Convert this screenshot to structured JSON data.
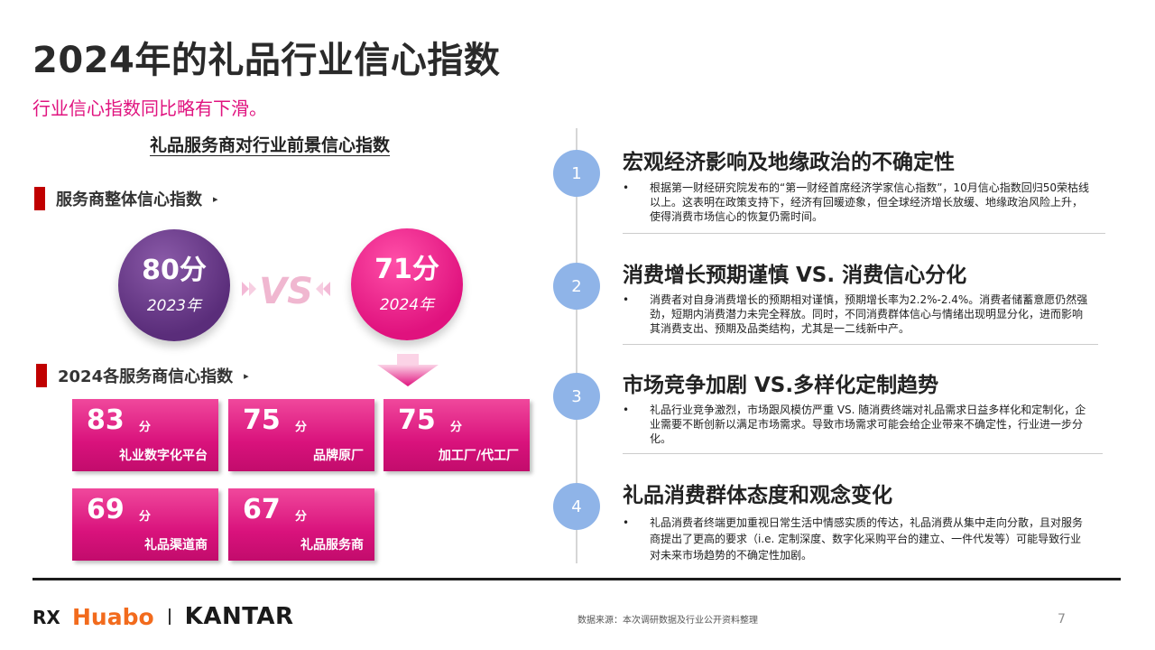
{
  "title": "2024年的礼品行业信心指数",
  "subtitle": "行业信心指数同比略有下滑。",
  "left": {
    "heading": "礼品服务商对行业前景信心指数",
    "overall_label": "服务商整体信心指数",
    "overall_arrow": "▸",
    "scores": [
      {
        "score": "80分",
        "year": "2023年",
        "color": "#6b3a8f"
      },
      {
        "score": "71分",
        "year": "2024年",
        "color": "#e0127e"
      }
    ],
    "vs_text": "VS",
    "by_type_label": "2024各服务商信心指数",
    "by_type_arrow": "▸",
    "tiles": [
      {
        "value": "83",
        "unit": "分",
        "name": "礼业数字化平台"
      },
      {
        "value": "75",
        "unit": "分",
        "name": "品牌原厂"
      },
      {
        "value": "75",
        "unit": "分",
        "name": "加工厂/代工厂"
      },
      {
        "value": "69",
        "unit": "分",
        "name": "礼品渠道商"
      },
      {
        "value": "67",
        "unit": "分",
        "name": "礼品服务商"
      }
    ]
  },
  "right": {
    "items": [
      {
        "num": "1",
        "title": "宏观经济影响及地缘政治的不确定性",
        "bullet": "•",
        "body": "根据第一财经研究院发布的“第一财经首席经济学家信心指数”，10月信心指数回归50荣枯线以上。这表明在政策支持下，经济有回暖迹象，但全球经济增长放缓、地缘政治风险上升，使得消费市场信心的恢复仍需时间。"
      },
      {
        "num": "2",
        "title": "消费增长预期谨慎 VS. 消费信心分化",
        "bullet": "•",
        "body": "消费者对自身消费增长的预期相对谨慎，预期增长率为2.2%-2.4%。消费者储蓄意愿仍然强劲，短期内消费潜力未完全释放。同时，不同消费群体信心与情绪出现明显分化，进而影响其消费支出、预期及品类结构，尤其是一二线新中产。"
      },
      {
        "num": "3",
        "title": "市场竞争加剧 VS.多样化定制趋势",
        "bullet": "•",
        "body": "礼品行业竞争激烈，市场跟风模仿严重 VS. 随消费终端对礼品需求日益多样化和定制化，企业需要不断创新以满足市场需求。导致市场需求可能会给企业带来不确定性，行业进一步分化。"
      },
      {
        "num": "4",
        "title": "礼品消费群体态度和观念变化",
        "bullet": "•",
        "body": "礼品消费者终端更加重视日常生活中情感实质的传达，礼品消费从集中走向分散，且对服务商提出了更高的要求（i.e. 定制深度、数字化采购平台的建立、一件代发等）可能导致行业对未来市场趋势的不确定性加剧。"
      }
    ]
  },
  "footer": {
    "logo_rx": "RX",
    "logo_huabo": "Huabo",
    "logo_kantar": "KANTAR",
    "source": "数据来源：本次调研数据及行业公开资料整理",
    "page": "7"
  },
  "colors": {
    "accent_pink": "#e0137f",
    "purple": "#6b3a8f",
    "timeline_blue": "#8fb4e8",
    "marker_red": "#c00000",
    "huabo_orange": "#f26b1d"
  }
}
